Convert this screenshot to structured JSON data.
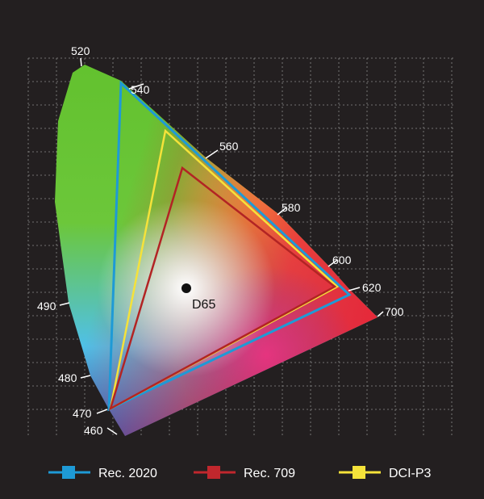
{
  "wavelengths": [
    "460",
    "470",
    "480",
    "490",
    "520",
    "540",
    "560",
    "580",
    "600",
    "620",
    "700"
  ],
  "white_point": "D65",
  "legend": [
    "Rec. 2020",
    "Rec. 709",
    "DCI-P3"
  ]
}
